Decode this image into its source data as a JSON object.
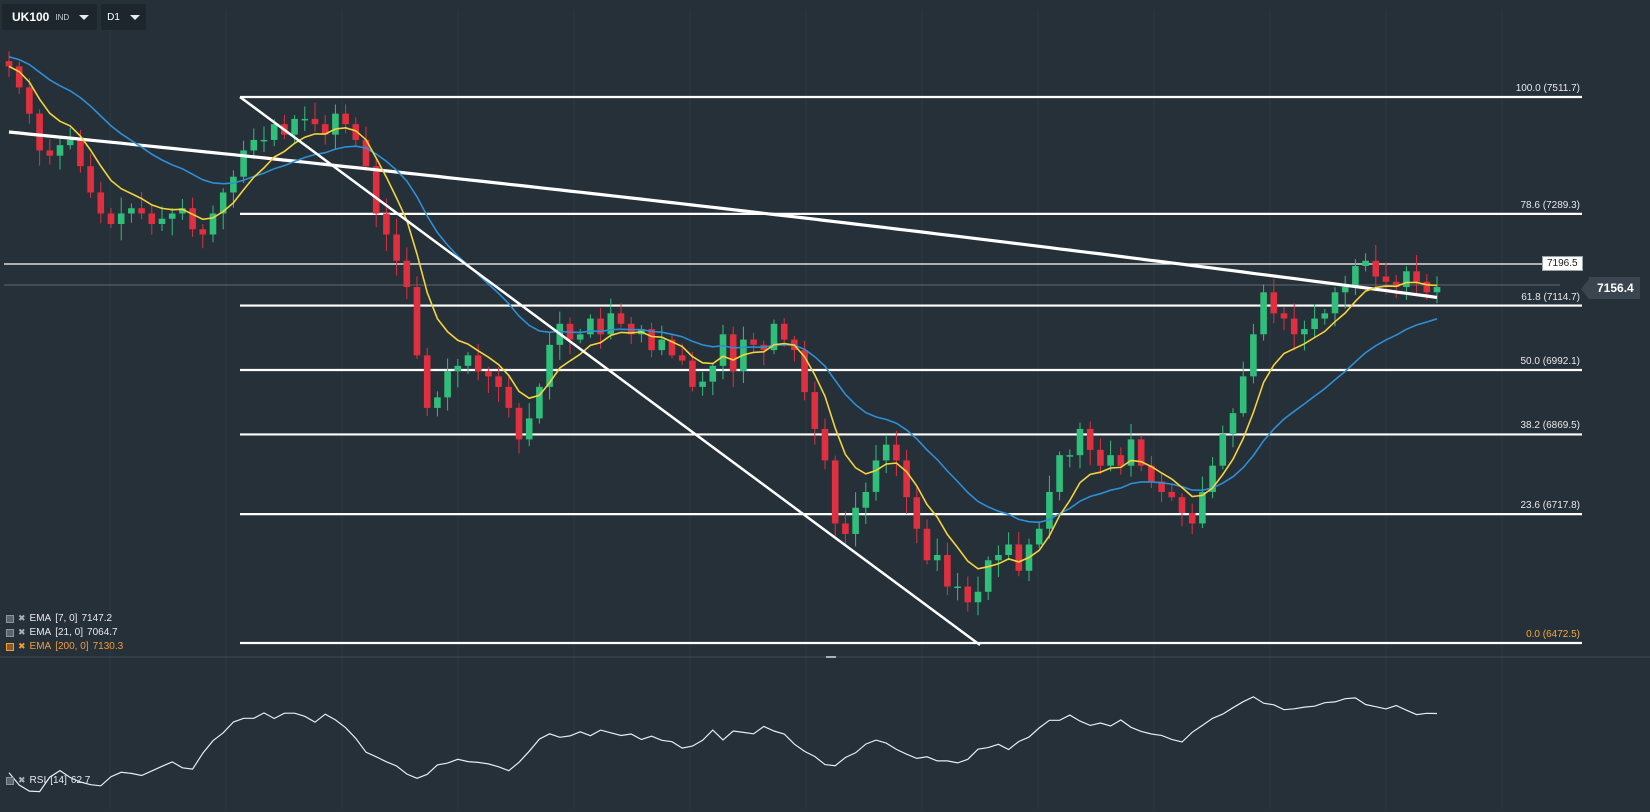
{
  "toolbar": {
    "symbol": "UK100",
    "symbol_type": "IND",
    "timeframe": "D1"
  },
  "current_price": "7156.4",
  "horizontal_level_label": "7196.5",
  "fib_levels": [
    {
      "label": "100.0 (7511.7)",
      "value": 7511.7
    },
    {
      "label": "78.6 (7289.3)",
      "value": 7289.3
    },
    {
      "label": "61.8 (7114.7)",
      "value": 7114.7
    },
    {
      "label": "50.0 (6992.1)",
      "value": 6992.1
    },
    {
      "label": "38.2 (6869.5)",
      "value": 6869.5
    },
    {
      "label": "23.6 (6717.8)",
      "value": 6717.8
    },
    {
      "label": "0.0 (6472.5)",
      "value": 6472.5
    }
  ],
  "indicators": [
    {
      "name": "EMA",
      "params": "[7, 0]",
      "value": "7147.2",
      "color": "#f5d33b"
    },
    {
      "name": "EMA",
      "params": "[21, 0]",
      "value": "7064.7",
      "color": "#2d8fd6"
    },
    {
      "name": "EMA",
      "params": "[200, 0]",
      "value": "7130.3",
      "color": "#ffffff"
    }
  ],
  "rsi": {
    "name": "RSI",
    "params": "[14]",
    "value": "62.7"
  },
  "colors": {
    "background": "#263039",
    "bull": "#2fbf7a",
    "bear": "#e0303f",
    "ema_fast": "#f5d33b",
    "ema_mid": "#2d8fd6",
    "ema_slow": "#ffffff",
    "fib_line": "#ffffff",
    "legend_highlight": "#f29b38"
  },
  "chart_data": {
    "type": "candlestick",
    "price_range": [
      6472.5,
      7511.7
    ],
    "closes": [
      7570,
      7530,
      7480,
      7410,
      7400,
      7420,
      7430,
      7380,
      7330,
      7290,
      7270,
      7290,
      7300,
      7290,
      7270,
      7280,
      7290,
      7300,
      7260,
      7250,
      7290,
      7330,
      7360,
      7410,
      7430,
      7430,
      7460,
      7440,
      7470,
      7470,
      7460,
      7440,
      7480,
      7460,
      7430,
      7380,
      7290,
      7250,
      7200,
      7150,
      7020,
      6920,
      6940,
      6990,
      7000,
      7020,
      6990,
      6980,
      6960,
      6920,
      6860,
      6900,
      6960,
      7040,
      7080,
      7050,
      7060,
      7090,
      7060,
      7100,
      7080,
      7060,
      7070,
      7030,
      7050,
      7020,
      7010,
      6960,
      6970,
      7000,
      7060,
      6990,
      7050,
      7040,
      7030,
      7080,
      7050,
      7030,
      6950,
      6880,
      6820,
      6700,
      6680,
      6730,
      6760,
      6820,
      6850,
      6820,
      6750,
      6690,
      6630,
      6640,
      6580,
      6580,
      6550,
      6570,
      6630,
      6640,
      6660,
      6610,
      6660,
      6690,
      6760,
      6830,
      6830,
      6880,
      6840,
      6810,
      6830,
      6810,
      6860,
      6810,
      6780,
      6760,
      6750,
      6720,
      6700,
      6760,
      6810,
      6870,
      6910,
      6980,
      7060,
      7140,
      7100,
      7090,
      7060,
      7070,
      7090,
      7100,
      7140,
      7150,
      7190,
      7200,
      7170,
      7160,
      7150,
      7180,
      7160,
      7140,
      7150
    ],
    "ema7_final": 7147.2,
    "ema21_final": 7064.7,
    "ema200_final": 7130.3,
    "rsi_final": 62.7
  }
}
